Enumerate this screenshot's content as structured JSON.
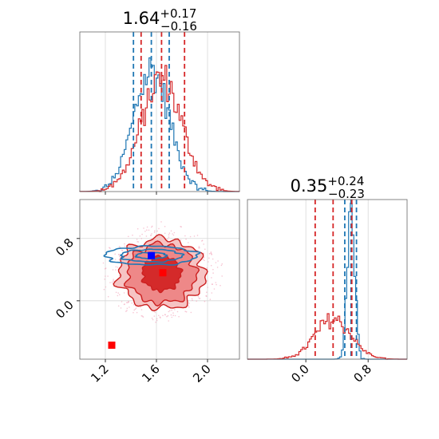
{
  "chart_data": {
    "type": "corner",
    "series": [
      {
        "name": "",
        "color": "#1f77b4"
      },
      {
        "name": "",
        "color": "#d62728"
      }
    ],
    "parameters": [
      {
        "title_median": "1.64",
        "title_plus": "+0.17",
        "title_minus": "−0.16",
        "range": [
          1.0,
          2.25
        ],
        "ticks": [
          1.2,
          1.6,
          2.0
        ],
        "tick_labels": [
          "1.2",
          "1.6",
          "2.0"
        ],
        "quantiles": {
          "blue": [
            1.42,
            1.56,
            1.7
          ],
          "red": [
            1.48,
            1.64,
            1.82
          ]
        },
        "hist_gauss": {
          "blue": {
            "mean": 1.56,
            "sd": 0.14
          },
          "red": {
            "mean": 1.64,
            "sd": 0.16
          }
        }
      },
      {
        "title_median": "0.35",
        "title_plus": "+0.24",
        "title_minus": "−0.23",
        "range": [
          -0.75,
          1.3
        ],
        "ticks": [
          0.0,
          0.8
        ],
        "tick_labels": [
          "0.0",
          "0.8"
        ],
        "quantiles": {
          "blue": [
            0.5,
            0.58,
            0.65
          ],
          "red": [
            0.12,
            0.35,
            0.59
          ]
        },
        "hist_gauss": {
          "blue": {
            "mean": 0.58,
            "sd": 0.05
          },
          "red": {
            "mean": 0.35,
            "sd": 0.23
          }
        }
      }
    ],
    "joint": {
      "red_contours": [
        {
          "rx": 0.15,
          "ry": 0.22,
          "color": "#d42a2a"
        },
        {
          "rx": 0.27,
          "ry": 0.38,
          "color": "#ee8888"
        },
        {
          "rx": 0.34,
          "ry": 0.45,
          "color": "#f6c4c4"
        }
      ],
      "red_center": [
        1.64,
        0.35
      ],
      "blue_center": [
        1.56,
        0.58
      ],
      "blue_contours": [
        {
          "rx": 0.12,
          "ry": 0.04
        },
        {
          "rx": 0.24,
          "ry": 0.08
        },
        {
          "rx": 0.36,
          "ry": 0.12
        }
      ],
      "markers": [
        {
          "x": 1.56,
          "y": 0.58,
          "color": "#0000ff"
        },
        {
          "x": 1.65,
          "y": 0.36,
          "color": "#ff0000"
        },
        {
          "x": 1.25,
          "y": -0.57,
          "color": "#ff0000"
        }
      ]
    }
  }
}
